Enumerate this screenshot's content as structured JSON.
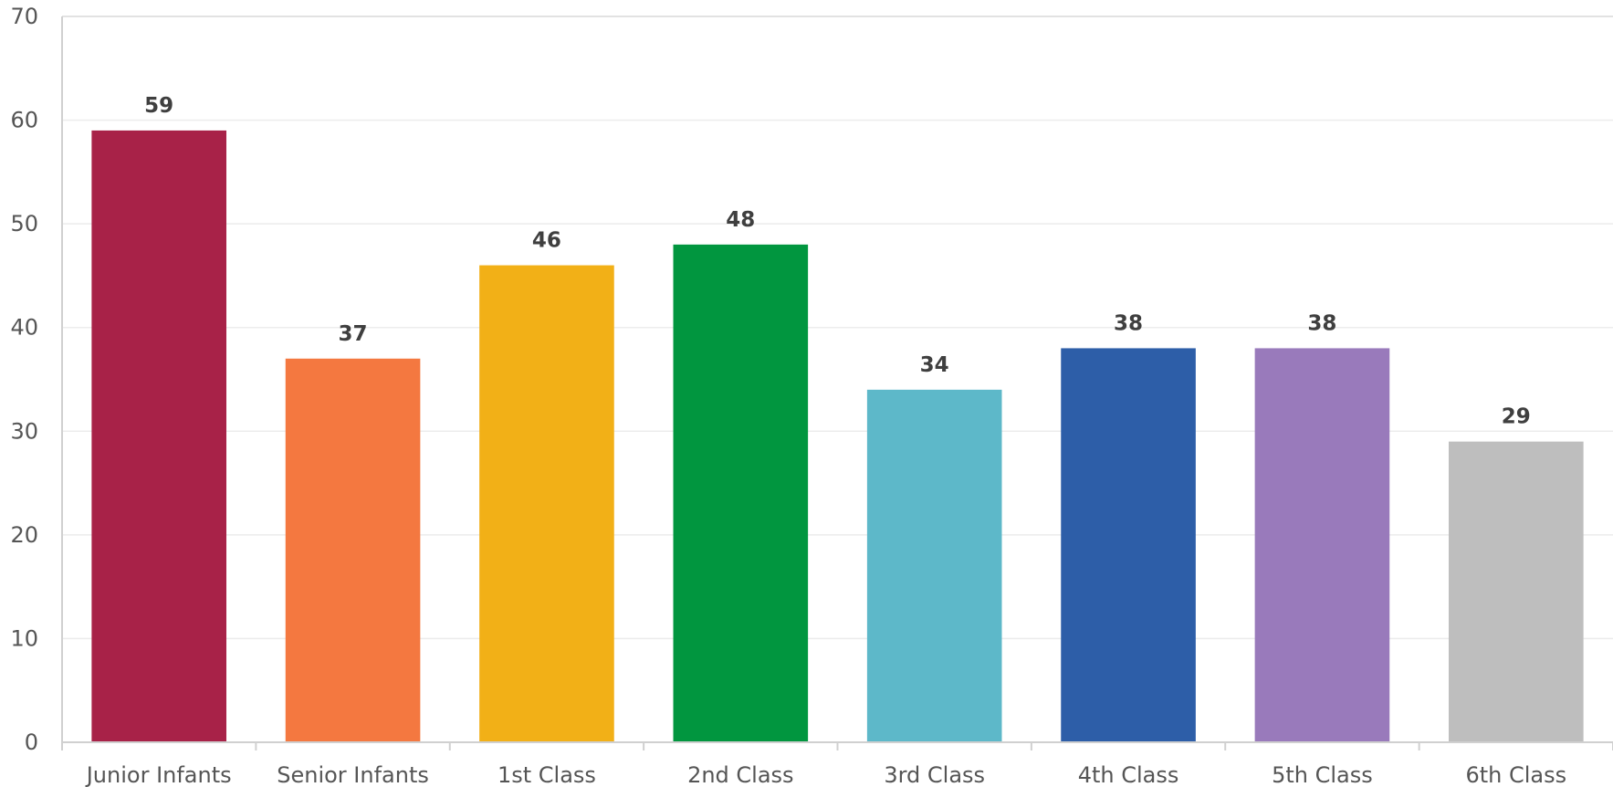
{
  "chart_data": {
    "type": "bar",
    "categories": [
      "Junior Infants",
      "Senior Infants",
      "1st Class",
      "2nd Class",
      "3rd Class",
      "4th Class",
      "5th Class",
      "6th Class"
    ],
    "values": [
      59,
      37,
      46,
      48,
      34,
      38,
      38,
      29
    ],
    "colors": [
      "#a82248",
      "#f47840",
      "#f2b017",
      "#01963f",
      "#5db8c9",
      "#2d5ea8",
      "#997abb",
      "#bebebe"
    ],
    "title": "",
    "xlabel": "",
    "ylabel": "",
    "ylim": [
      0,
      70
    ],
    "yticks": [
      0,
      10,
      20,
      30,
      40,
      50,
      60,
      70
    ],
    "grid": true,
    "data_labels": true,
    "legend": "none"
  }
}
